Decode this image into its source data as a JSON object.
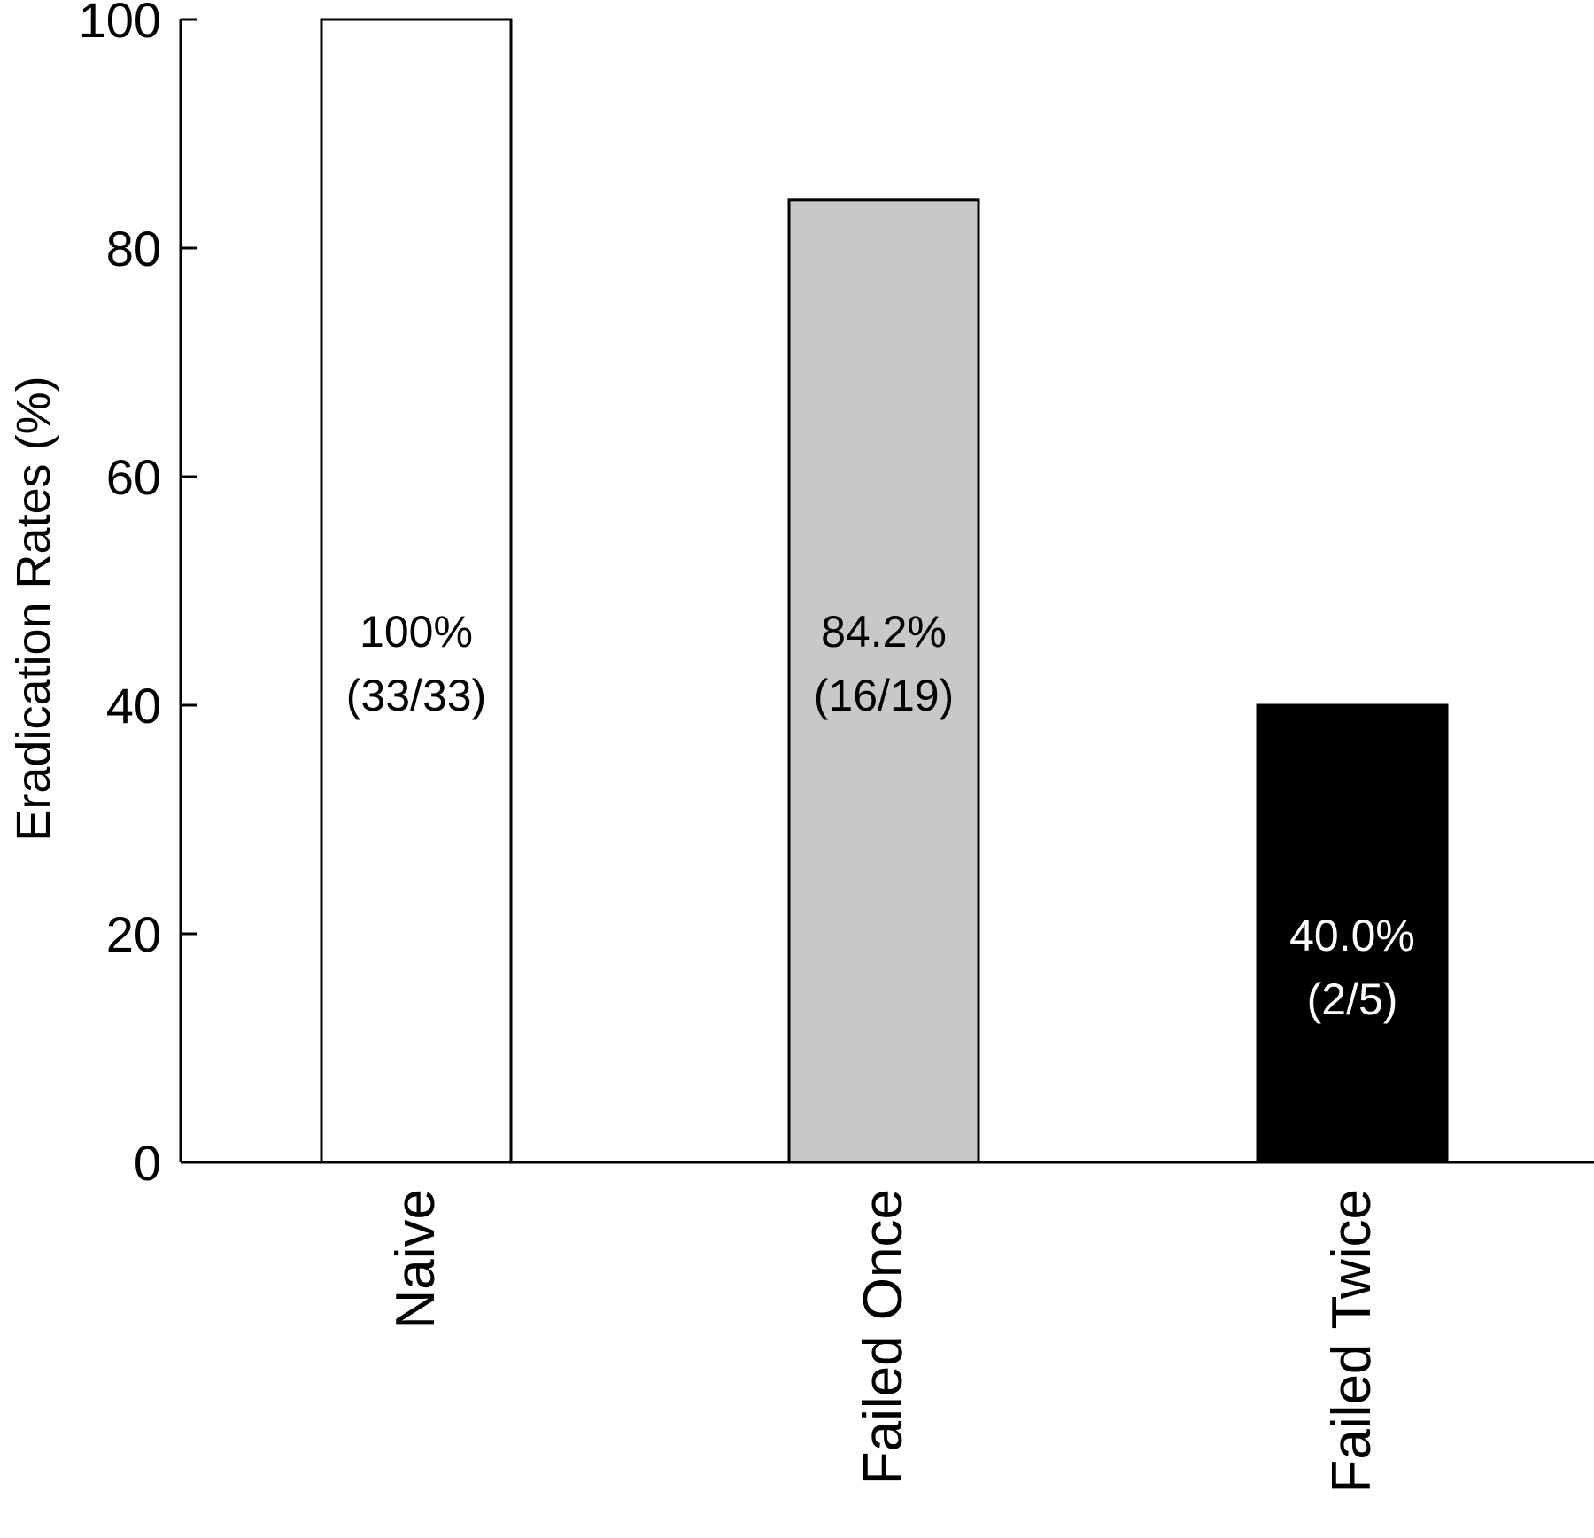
{
  "chart_data": {
    "type": "bar",
    "title": "",
    "xlabel": "",
    "ylabel": "Eradication Rates (%)",
    "ylim": [
      0,
      100
    ],
    "yticks": [
      0,
      20,
      40,
      60,
      80,
      100
    ],
    "ytick_labels": [
      "0",
      "20",
      "40",
      "60",
      "80",
      "100"
    ],
    "grid": false,
    "legend": "none",
    "categories": [
      "Naive",
      "Failed Once",
      "Failed Twice"
    ],
    "values": [
      100,
      84.2,
      40.0
    ],
    "bar_labels": [
      [
        "100%",
        "(33/33)"
      ],
      [
        "84.2%",
        "(16/19)"
      ],
      [
        "40.0%",
        "(2/5)"
      ]
    ],
    "bar_colors": [
      "#ffffff",
      "#c8c8c8",
      "#000000"
    ],
    "bar_label_colors": [
      "#000000",
      "#000000",
      "#ffffff"
    ]
  }
}
